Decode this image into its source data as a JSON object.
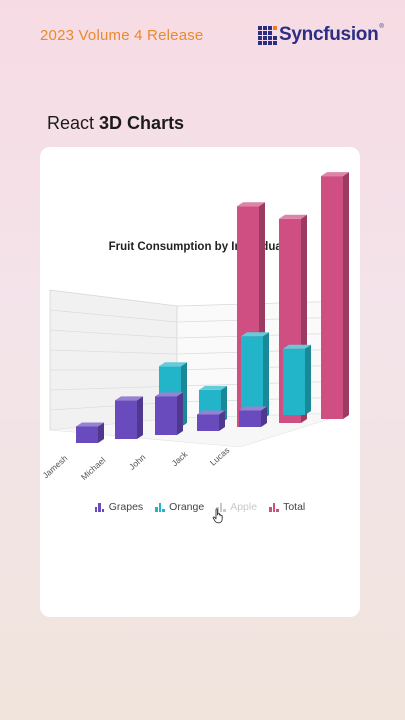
{
  "header": {
    "release_label": "2023 Volume 4 Release",
    "brand_name": "Syncfusion",
    "brand_reg": "®"
  },
  "heading": {
    "prefix": "React",
    "highlight": "3D Charts"
  },
  "colors": {
    "grapes": "#6a4bbd",
    "orange": "#22b5c9",
    "apple": "#c9c9c9",
    "total": "#cf4f82",
    "accent": "#e98a2c",
    "brand": "#2b2e83"
  },
  "chart_data": {
    "type": "bar",
    "title": "Fruit Consumption by Individuals",
    "categories": [
      "Jamesh",
      "Michael",
      "John",
      "Jack",
      "Lucas"
    ],
    "series": [
      {
        "name": "Grapes",
        "values": [
          1.5,
          3.5,
          3.5,
          1.5,
          1.5
        ],
        "color": "#6a4bbd",
        "visible": true
      },
      {
        "name": "Orange",
        "values": [
          0,
          5.5,
          3,
          7.5,
          6
        ],
        "color": "#22b5c9",
        "visible": true
      },
      {
        "name": "Apple",
        "values": [
          0,
          0,
          0,
          0,
          0
        ],
        "color": "#c9c9c9",
        "visible": false
      },
      {
        "name": "Total",
        "values": [
          0,
          0,
          20,
          18.5,
          22
        ],
        "color": "#cf4f82",
        "visible": true
      }
    ],
    "ylim": [
      0,
      25
    ],
    "grid": true,
    "legend_position": "bottom",
    "view": "3d-rotated"
  },
  "legend": [
    {
      "label": "Grapes",
      "color": "#6a4bbd",
      "disabled": false
    },
    {
      "label": "Orange",
      "color": "#22b5c9",
      "disabled": false
    },
    {
      "label": "Apple",
      "color": "#c9c9c9",
      "disabled": true
    },
    {
      "label": "Total",
      "color": "#cf4f82",
      "disabled": false
    }
  ],
  "cursor": {
    "icon": "hand-pointer-icon"
  }
}
